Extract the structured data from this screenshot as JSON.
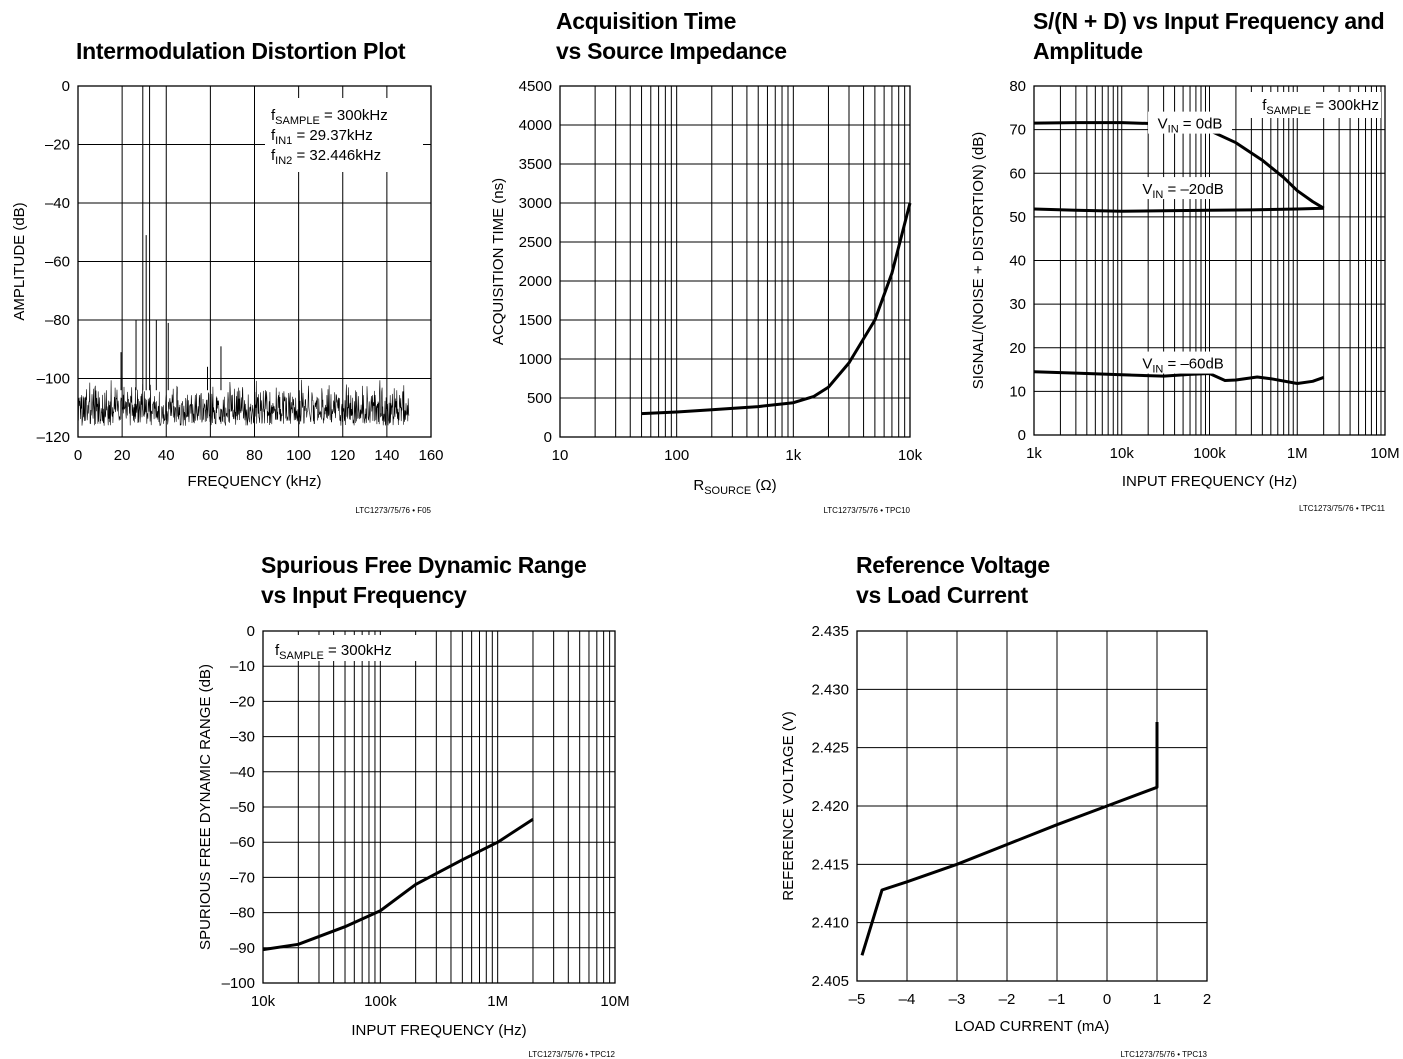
{
  "chart_data": [
    {
      "id": "imd",
      "type": "line",
      "title": [
        "Intermodulation Distortion Plot"
      ],
      "xlabel": "FREQUENCY (kHz)",
      "ylabel": "AMPLITUDE (dB)",
      "xscale": "linear",
      "xlim": [
        0,
        160
      ],
      "ylim": [
        -120,
        0
      ],
      "xticks": [
        0,
        20,
        40,
        60,
        80,
        100,
        120,
        140,
        160
      ],
      "xtick_labels": [
        "0",
        "20",
        "40",
        "60",
        "80",
        "100",
        "120",
        "140",
        "160"
      ],
      "yticks": [
        0,
        -20,
        -40,
        -60,
        -80,
        -100,
        -120
      ],
      "ytick_labels": [
        "0",
        "–20",
        "–40",
        "–60",
        "–80",
        "–100",
        "–120"
      ],
      "grid": true,
      "code": "LTC1273/75/76 • F05",
      "annotations": [
        {
          "pre": "f",
          "sub": "SAMPLE",
          "post": " = 300kHz"
        },
        {
          "pre": "f",
          "sub": "IN1",
          "post": " = 29.37kHz"
        },
        {
          "pre": "f",
          "sub": "IN2",
          "post": " = 32.446kHz"
        }
      ],
      "noise_floor": {
        "x_range": [
          0,
          150
        ],
        "y_range": [
          -119,
          -100
        ]
      },
      "spikes": [
        {
          "x": 29.37,
          "y": 0
        },
        {
          "x": 32.446,
          "y": 0
        },
        {
          "x": 30.9,
          "y": -51
        },
        {
          "x": 35.5,
          "y": -80
        },
        {
          "x": 26.3,
          "y": -80
        },
        {
          "x": 40.9,
          "y": -81
        },
        {
          "x": 19.5,
          "y": -91
        },
        {
          "x": 58.7,
          "y": -96
        },
        {
          "x": 64.8,
          "y": -89
        }
      ]
    },
    {
      "id": "acq",
      "type": "line",
      "title": [
        "Acquisition Time",
        "vs Source Impedance"
      ],
      "xlabel_pre": "R",
      "xlabel_sub": "SOURCE",
      "xlabel_post": " (Ω)",
      "ylabel": "ACQUISITION TIME (ns)",
      "xscale": "log",
      "xlim": [
        10,
        10000
      ],
      "ylim": [
        0,
        4500
      ],
      "xticks": [
        10,
        100,
        1000,
        10000
      ],
      "xtick_labels": [
        "10",
        "100",
        "1k",
        "10k"
      ],
      "yticks": [
        0,
        500,
        1000,
        1500,
        2000,
        2500,
        3000,
        3500,
        4000,
        4500
      ],
      "ytick_labels": [
        "0",
        "500",
        "1000",
        "1500",
        "2000",
        "2500",
        "3000",
        "3500",
        "4000",
        "4500"
      ],
      "grid": true,
      "code": "LTC1273/75/76 • TPC10",
      "series": [
        {
          "x": [
            50,
            100,
            200,
            500,
            1000,
            1500,
            2000,
            3000,
            5000,
            7000,
            10000
          ],
          "y": [
            300,
            320,
            350,
            390,
            440,
            520,
            640,
            950,
            1500,
            2100,
            3000
          ]
        }
      ]
    },
    {
      "id": "snd",
      "type": "line",
      "title": [
        "S/(N + D) vs Input Frequency and",
        "Amplitude"
      ],
      "xlabel": "INPUT FREQUENCY (Hz)",
      "ylabel": "SIGNAL/(NOISE + DISTORTION) (dB)",
      "xscale": "log",
      "xlim": [
        1000,
        10000000
      ],
      "ylim": [
        0,
        80
      ],
      "xticks": [
        1000,
        10000,
        100000,
        1000000,
        10000000
      ],
      "xtick_labels": [
        "1k",
        "10k",
        "100k",
        "1M",
        "10M"
      ],
      "yticks": [
        0,
        10,
        20,
        30,
        40,
        50,
        60,
        70,
        80
      ],
      "ytick_labels": [
        "0",
        "10",
        "20",
        "30",
        "40",
        "50",
        "60",
        "70",
        "80"
      ],
      "grid": true,
      "code": "LTC1273/75/76 • TPC11",
      "annotations": [
        {
          "pre": "f",
          "sub": "SAMPLE",
          "post": " = 300kHz"
        }
      ],
      "series": [
        {
          "label_pre": "V",
          "label_sub": "IN",
          "label_post": " = 0dB",
          "x": [
            1000,
            3000,
            10000,
            30000,
            70000,
            100000,
            200000,
            400000,
            700000,
            1000000,
            1500000,
            2000000
          ],
          "y": [
            71.5,
            71.6,
            71.6,
            71.3,
            70.5,
            69.8,
            67,
            63,
            59,
            56,
            53.5,
            52
          ]
        },
        {
          "label_pre": "V",
          "label_sub": "IN",
          "label_post": " = –20dB",
          "x": [
            1000,
            3000,
            10000,
            30000,
            100000,
            300000,
            1000000,
            2000000
          ],
          "y": [
            51.8,
            51.5,
            51.3,
            51.4,
            51.5,
            51.6,
            51.8,
            52
          ]
        },
        {
          "label_pre": "V",
          "label_sub": "IN",
          "label_post": " = –60dB",
          "x": [
            1000,
            3000,
            10000,
            30000,
            60000,
            100000,
            150000,
            200000,
            350000,
            500000,
            1000000,
            1500000,
            2000000
          ],
          "y": [
            14.5,
            14.2,
            13.8,
            13.5,
            13.9,
            14.1,
            12.5,
            12.6,
            13.3,
            12.9,
            11.8,
            12.3,
            13.2
          ]
        }
      ]
    },
    {
      "id": "sfdr",
      "type": "line",
      "title": [
        "Spurious Free Dynamic Range",
        "vs Input Frequency"
      ],
      "xlabel": "INPUT FREQUENCY (Hz)",
      "ylabel": "SPURIOUS FREE DYNAMIC RANGE (dB)",
      "xscale": "log",
      "xlim": [
        10000,
        10000000
      ],
      "ylim": [
        -100,
        0
      ],
      "xticks": [
        10000,
        100000,
        1000000,
        10000000
      ],
      "xtick_labels": [
        "10k",
        "100k",
        "1M",
        "10M"
      ],
      "yticks": [
        0,
        -10,
        -20,
        -30,
        -40,
        -50,
        -60,
        -70,
        -80,
        -90,
        -100
      ],
      "ytick_labels": [
        "0",
        "–10",
        "–20",
        "–30",
        "–40",
        "–50",
        "–60",
        "–70",
        "–80",
        "–90",
        "–100"
      ],
      "grid": true,
      "code": "LTC1273/75/76 • TPC12",
      "annotations": [
        {
          "pre": "f",
          "sub": "SAMPLE",
          "post": " = 300kHz"
        }
      ],
      "series": [
        {
          "x": [
            10000,
            20000,
            50000,
            100000,
            200000,
            500000,
            1000000,
            2000000
          ],
          "y": [
            -90.5,
            -89,
            -84,
            -79.5,
            -72,
            -65,
            -60,
            -53.5
          ]
        }
      ]
    },
    {
      "id": "ref",
      "type": "line",
      "title": [
        "Reference Voltage",
        "vs Load Current"
      ],
      "xlabel": "LOAD CURRENT (mA)",
      "ylabel": "REFERENCE VOLTAGE (V)",
      "xscale": "linear",
      "xlim": [
        -5,
        2
      ],
      "ylim": [
        2.405,
        2.435
      ],
      "xticks": [
        -5,
        -4,
        -3,
        -2,
        -1,
        0,
        1,
        2
      ],
      "xtick_labels": [
        "–5",
        "–4",
        "–3",
        "–2",
        "–1",
        "0",
        "1",
        "2"
      ],
      "yticks": [
        2.405,
        2.41,
        2.415,
        2.42,
        2.425,
        2.43,
        2.435
      ],
      "ytick_labels": [
        "2.405",
        "2.410",
        "2.415",
        "2.420",
        "2.425",
        "2.430",
        "2.435"
      ],
      "grid": true,
      "code": "LTC1273/75/76 • TPC13",
      "series": [
        {
          "x": [
            -4.9,
            -4.5,
            -4,
            -3,
            -2,
            -1,
            0,
            1,
            1
          ],
          "y": [
            2.4072,
            2.4128,
            2.4135,
            2.415,
            2.4167,
            2.4184,
            2.42,
            2.4216,
            2.4272
          ]
        }
      ]
    }
  ]
}
